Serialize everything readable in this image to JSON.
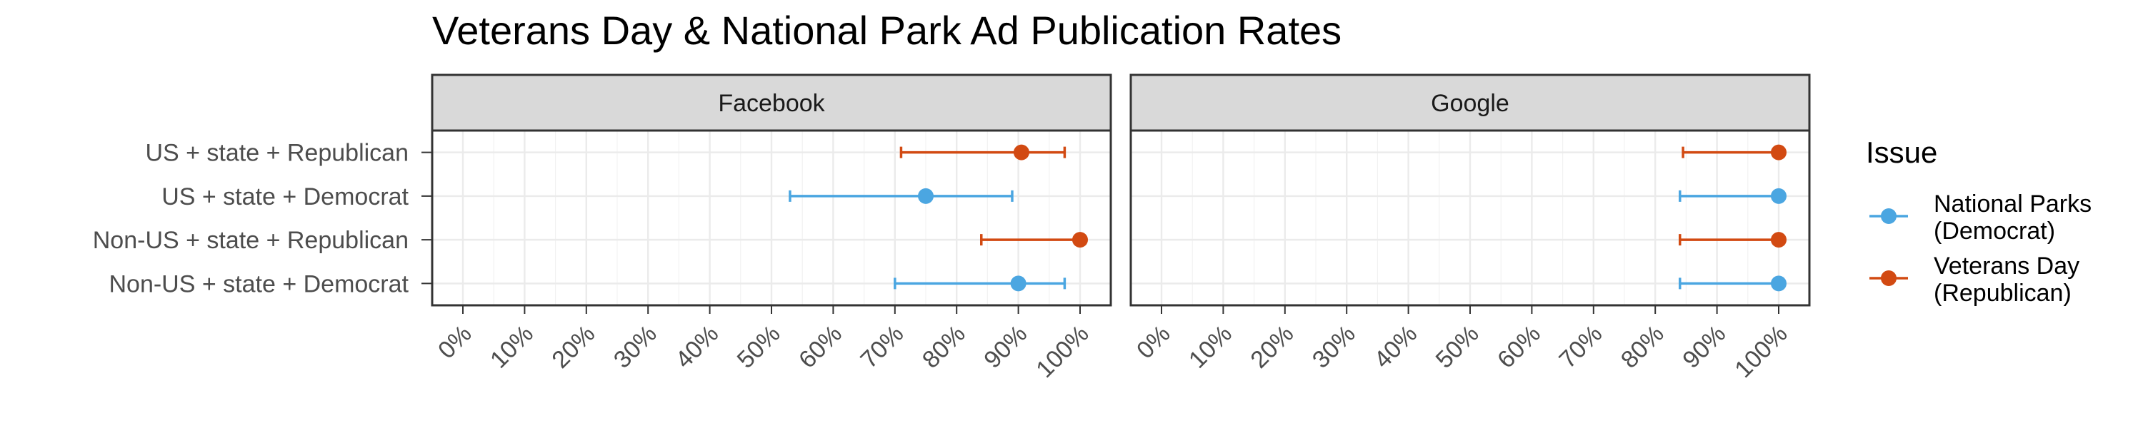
{
  "title": "Veterans Day & National Park Ad Publication Rates",
  "chart_data": {
    "type": "dot-errorbar",
    "title": "Veterans Day & National Park Ad Publication Rates",
    "facets": [
      "Facebook",
      "Google"
    ],
    "categories": [
      "US + state + Republican",
      "US + state + Democrat",
      "Non-US + state + Republican",
      "Non-US + state + Democrat"
    ],
    "x_ticks": [
      "0%",
      "10%",
      "20%",
      "30%",
      "40%",
      "50%",
      "60%",
      "70%",
      "80%",
      "90%",
      "100%"
    ],
    "xlim": [
      0,
      100
    ],
    "grid": true,
    "legend": {
      "title": "Issue",
      "position": "right",
      "entries": [
        {
          "line1": "National Parks",
          "line2": "(Democrat)",
          "color": "#4ba6e1"
        },
        {
          "line1": "Veterans Day",
          "line2": "(Republican)",
          "color": "#d24a12"
        }
      ]
    },
    "panels": [
      {
        "facet": "Facebook",
        "points": [
          {
            "category": "US + state + Republican",
            "issue": "Veterans Day (Republican)",
            "value": 90.5,
            "lower": 71,
            "upper": 97.5,
            "color": "#d24a12"
          },
          {
            "category": "US + state + Democrat",
            "issue": "National Parks (Democrat)",
            "value": 75,
            "lower": 53,
            "upper": 89,
            "color": "#4ba6e1"
          },
          {
            "category": "Non-US + state + Republican",
            "issue": "Veterans Day (Republican)",
            "value": 100,
            "lower": 84,
            "upper": 100,
            "color": "#d24a12"
          },
          {
            "category": "Non-US + state + Democrat",
            "issue": "National Parks (Democrat)",
            "value": 90,
            "lower": 70,
            "upper": 97.5,
            "color": "#4ba6e1"
          }
        ]
      },
      {
        "facet": "Google",
        "points": [
          {
            "category": "US + state + Republican",
            "issue": "Veterans Day (Republican)",
            "value": 100,
            "lower": 84.5,
            "upper": 100,
            "color": "#d24a12"
          },
          {
            "category": "US + state + Democrat",
            "issue": "National Parks (Democrat)",
            "value": 100,
            "lower": 84,
            "upper": 100,
            "color": "#4ba6e1"
          },
          {
            "category": "Non-US + state + Republican",
            "issue": "Veterans Day (Republican)",
            "value": 100,
            "lower": 84,
            "upper": 100,
            "color": "#d24a12"
          },
          {
            "category": "Non-US + state + Democrat",
            "issue": "National Parks (Democrat)",
            "value": 100,
            "lower": 84,
            "upper": 100,
            "color": "#4ba6e1"
          }
        ]
      }
    ]
  }
}
